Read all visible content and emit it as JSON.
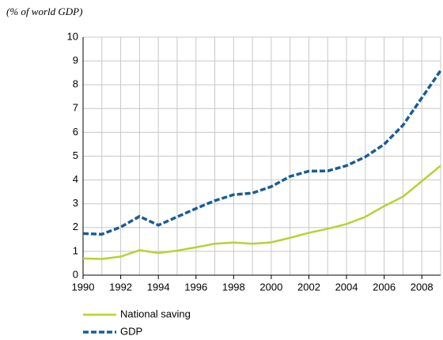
{
  "chart_data": {
    "type": "line",
    "subtitle": "(% of world GDP)",
    "x": [
      1990,
      1991,
      1992,
      1993,
      1994,
      1995,
      1996,
      1997,
      1998,
      1999,
      2000,
      2001,
      2002,
      2003,
      2004,
      2005,
      2006,
      2007,
      2008,
      2009
    ],
    "series": [
      {
        "name": "National saving",
        "color": "#b5d334",
        "dashed": false,
        "values": [
          0.7,
          0.68,
          0.78,
          1.05,
          0.93,
          1.03,
          1.17,
          1.32,
          1.37,
          1.32,
          1.38,
          1.57,
          1.78,
          1.95,
          2.15,
          2.45,
          2.9,
          3.3,
          3.95,
          4.6
        ]
      },
      {
        "name": "GDP",
        "color": "#1a5c96",
        "dashed": true,
        "values": [
          1.75,
          1.72,
          2.02,
          2.47,
          2.1,
          2.45,
          2.8,
          3.13,
          3.38,
          3.45,
          3.72,
          4.15,
          4.37,
          4.38,
          4.6,
          4.97,
          5.5,
          6.3,
          7.45,
          8.6
        ]
      }
    ],
    "xlim": [
      1990,
      2009
    ],
    "xticks": [
      1990,
      1992,
      1994,
      1996,
      1998,
      2000,
      2002,
      2004,
      2006,
      2008
    ],
    "minor_xticks": [
      1991,
      1993,
      1995,
      1997,
      1999,
      2001,
      2003,
      2005,
      2007,
      2009
    ],
    "ylim": [
      0,
      10
    ],
    "yticks": [
      0,
      1,
      2,
      3,
      4,
      5,
      6,
      7,
      8,
      9,
      10
    ],
    "grid": true,
    "legend": "bottom"
  }
}
